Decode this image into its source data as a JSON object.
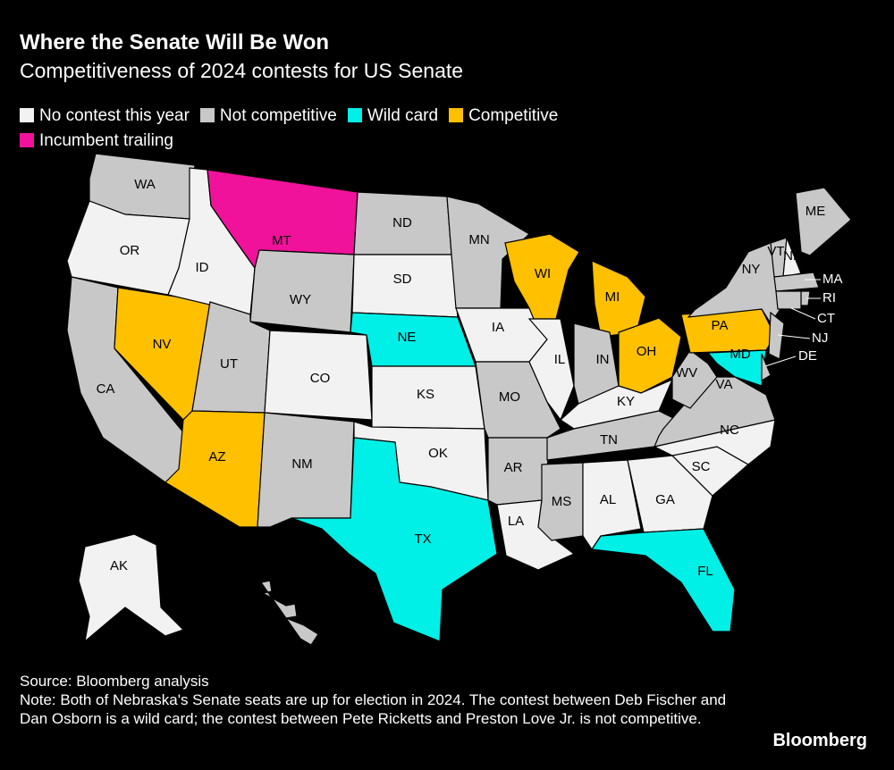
{
  "header": {
    "title": "Where the Senate Will Be Won",
    "subtitle": "Competitiveness of 2024 contests for US Senate"
  },
  "legend": [
    {
      "label": "No contest this year",
      "color": "#f2f2f2"
    },
    {
      "label": "Not competitive",
      "color": "#c8c8c8"
    },
    {
      "label": "Wild card",
      "color": "#00efe6"
    },
    {
      "label": "Competitive",
      "color": "#ffc000"
    },
    {
      "label": "Incumbent trailing",
      "color": "#f0129a"
    }
  ],
  "states": [
    {
      "label": "WA",
      "category": 1
    },
    {
      "label": "OR",
      "category": 0
    },
    {
      "label": "CA",
      "category": 1
    },
    {
      "label": "NV",
      "category": 3
    },
    {
      "label": "ID",
      "category": 0
    },
    {
      "label": "MT",
      "category": 4
    },
    {
      "label": "WY",
      "category": 1
    },
    {
      "label": "UT",
      "category": 1
    },
    {
      "label": "AZ",
      "category": 3
    },
    {
      "label": "CO",
      "category": 0
    },
    {
      "label": "NM",
      "category": 1
    },
    {
      "label": "ND",
      "category": 1
    },
    {
      "label": "SD",
      "category": 0
    },
    {
      "label": "NE",
      "category": 2
    },
    {
      "label": "KS",
      "category": 0
    },
    {
      "label": "OK",
      "category": 0
    },
    {
      "label": "TX",
      "category": 2
    },
    {
      "label": "MN",
      "category": 1
    },
    {
      "label": "IA",
      "category": 0
    },
    {
      "label": "MO",
      "category": 1
    },
    {
      "label": "AR",
      "category": 1
    },
    {
      "label": "LA",
      "category": 0
    },
    {
      "label": "WI",
      "category": 3
    },
    {
      "label": "IL",
      "category": 0
    },
    {
      "label": "MI",
      "category": 3
    },
    {
      "label": "IN",
      "category": 1
    },
    {
      "label": "OH",
      "category": 3
    },
    {
      "label": "KY",
      "category": 0
    },
    {
      "label": "TN",
      "category": 1
    },
    {
      "label": "MS",
      "category": 1
    },
    {
      "label": "AL",
      "category": 0
    },
    {
      "label": "GA",
      "category": 0
    },
    {
      "label": "FL",
      "category": 2
    },
    {
      "label": "SC",
      "category": 0
    },
    {
      "label": "NC",
      "category": 0
    },
    {
      "label": "VA",
      "category": 1
    },
    {
      "label": "WV",
      "category": 1
    },
    {
      "label": "PA",
      "category": 3
    },
    {
      "label": "NY",
      "category": 1
    },
    {
      "label": "MD",
      "category": 2
    },
    {
      "label": "DE",
      "category": 1
    },
    {
      "label": "NJ",
      "category": 1
    },
    {
      "label": "VT",
      "category": 1
    },
    {
      "label": "NH",
      "category": 0
    },
    {
      "label": "ME",
      "category": 1
    },
    {
      "label": "MA",
      "category": 1
    },
    {
      "label": "RI",
      "category": 1
    },
    {
      "label": "CT",
      "category": 1
    },
    {
      "label": "AK",
      "category": 0
    },
    {
      "label": null,
      "category": 1
    }
  ],
  "footer": {
    "source": "Source: Bloomberg analysis",
    "note": "Note: Both of Nebraska's Senate seats are up for election in 2024. The contest between Deb Fischer and Dan Osborn is a wild card; the contest between Pete Ricketts and Preston Love Jr. is not competitive.",
    "logo": "Bloomberg"
  }
}
